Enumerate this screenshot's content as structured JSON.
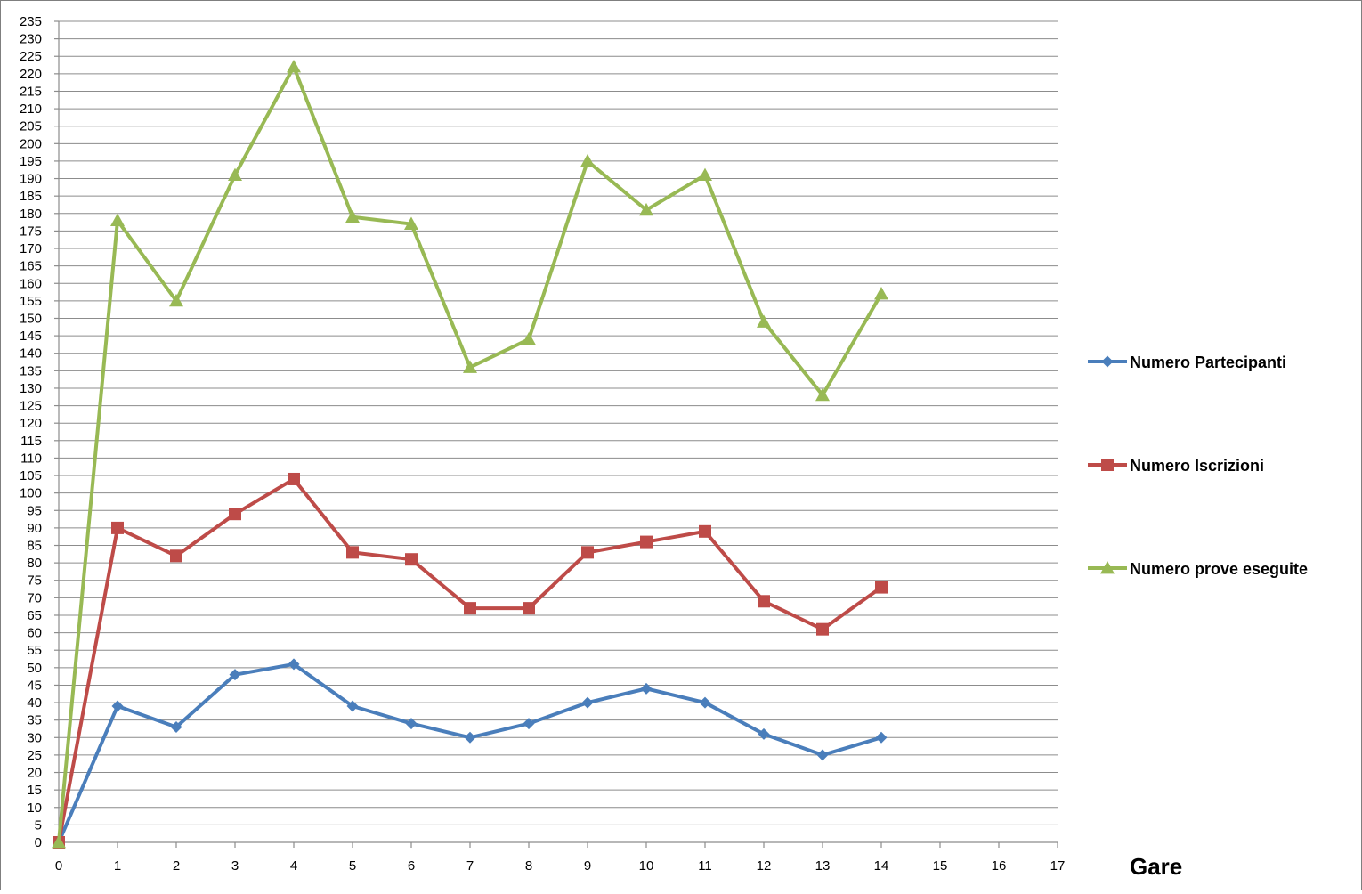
{
  "chart_data": {
    "type": "line",
    "title": "",
    "xlabel": "Gare",
    "ylabel": "",
    "xlim": [
      0,
      17
    ],
    "ylim": [
      0,
      235
    ],
    "x_tick_step": 1,
    "y_tick_step": 5,
    "grid": "horizontal",
    "legend_position": "right",
    "series": [
      {
        "name": "Numero Partecipanti",
        "color": "#4A7EBB",
        "marker": "diamond",
        "x": [
          0,
          1,
          2,
          3,
          4,
          5,
          6,
          7,
          8,
          9,
          10,
          11,
          12,
          13,
          14
        ],
        "values": [
          0,
          39,
          33,
          48,
          51,
          39,
          34,
          30,
          34,
          40,
          44,
          40,
          31,
          25,
          30
        ]
      },
      {
        "name": "Numero Iscrizioni",
        "color": "#BE4B48",
        "marker": "square",
        "x": [
          0,
          1,
          2,
          3,
          4,
          5,
          6,
          7,
          8,
          9,
          10,
          11,
          12,
          13,
          14
        ],
        "values": [
          0,
          90,
          82,
          94,
          104,
          83,
          81,
          67,
          67,
          83,
          86,
          89,
          69,
          61,
          73
        ]
      },
      {
        "name": "Numero prove eseguite",
        "color": "#98B954",
        "marker": "triangle",
        "x": [
          0,
          1,
          2,
          3,
          4,
          5,
          6,
          7,
          8,
          9,
          10,
          11,
          12,
          13,
          14
        ],
        "values": [
          0,
          178,
          155,
          191,
          222,
          179,
          177,
          136,
          144,
          195,
          181,
          191,
          149,
          128,
          157
        ]
      }
    ]
  }
}
